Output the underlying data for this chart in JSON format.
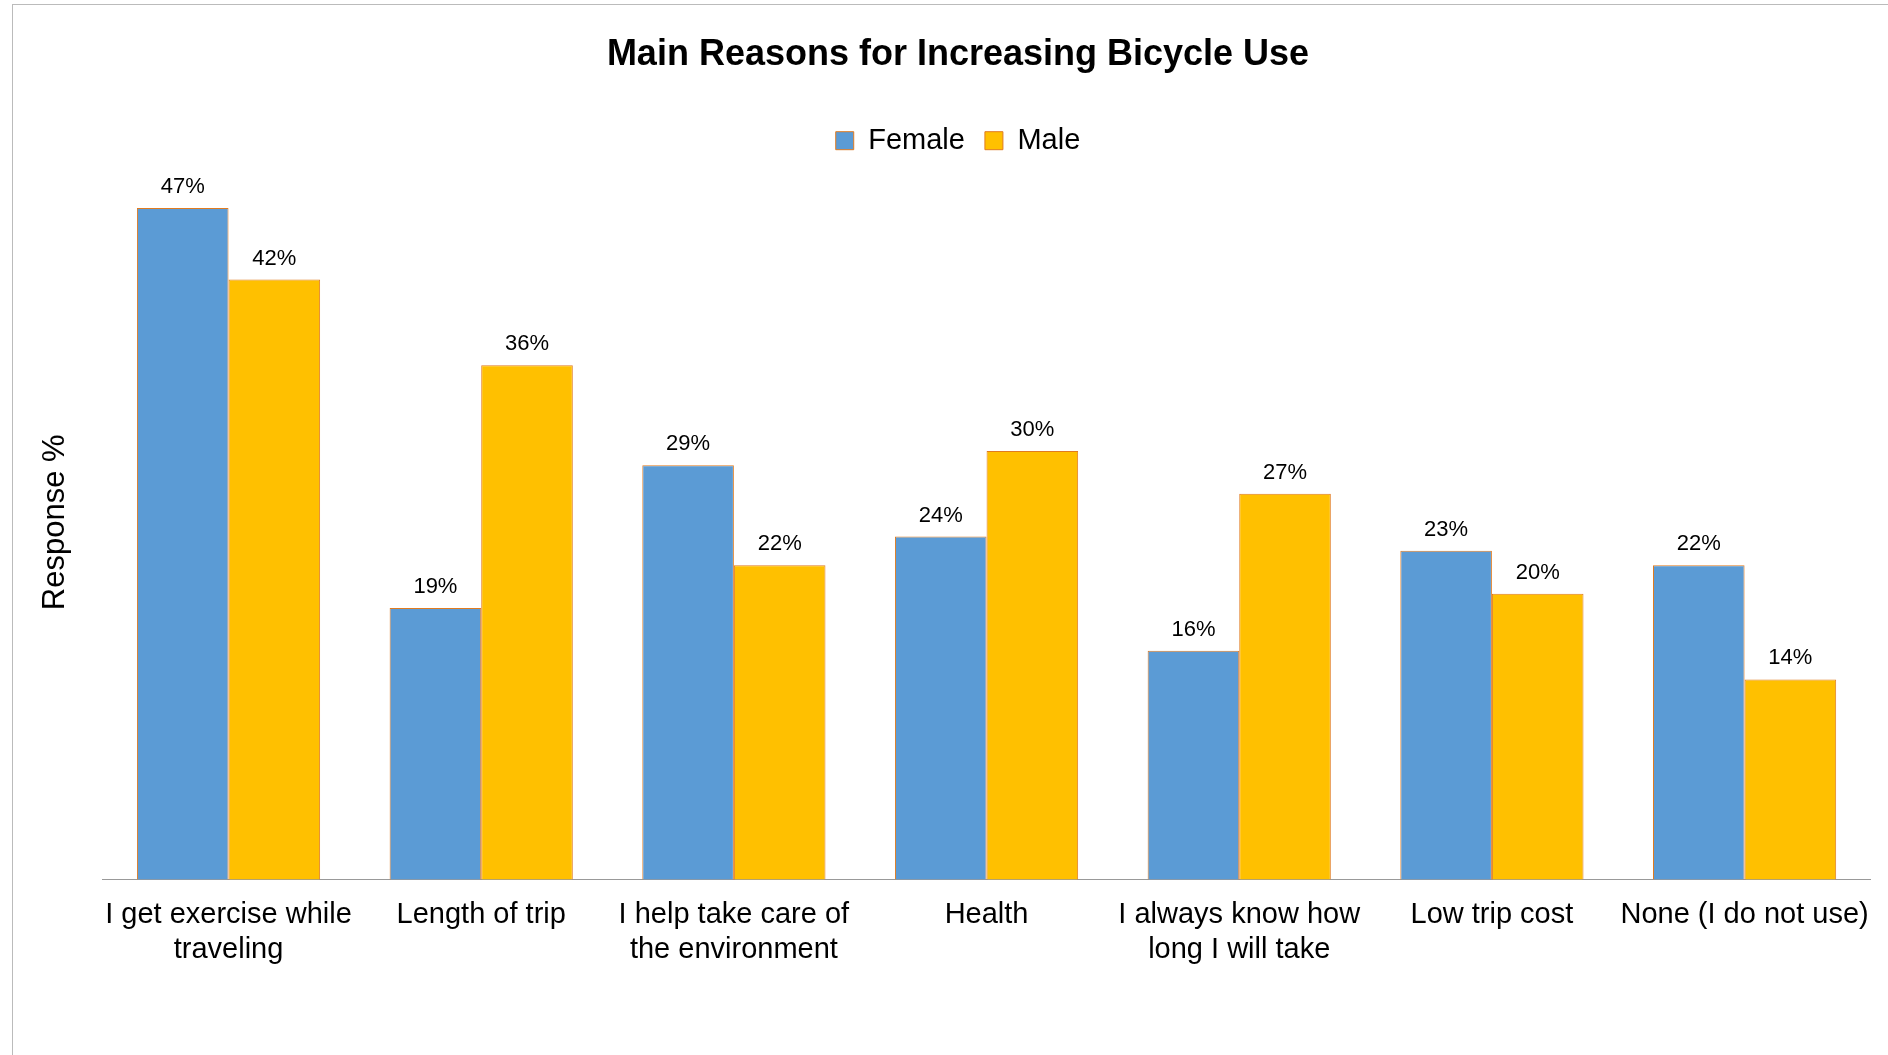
{
  "chart_data": {
    "type": "bar",
    "title": "Main Reasons for Increasing Bicycle Use",
    "ylabel": "Response %",
    "categories": [
      "I get exercise while traveling",
      "Length of trip",
      "I help take care of the environment",
      "Health",
      "I always know how long I will take",
      "Low trip cost",
      "None (I do not use)"
    ],
    "series": [
      {
        "name": "Female",
        "color": "#5b9bd5",
        "values": [
          47,
          19,
          29,
          24,
          16,
          23,
          22
        ],
        "value_labels": [
          "47%",
          "19%",
          "29%",
          "24%",
          "16%",
          "23%",
          "22%"
        ]
      },
      {
        "name": "Male",
        "color": "#ffc000",
        "values": [
          42,
          36,
          22,
          30,
          27,
          20,
          14
        ],
        "value_labels": [
          "42%",
          "36%",
          "22%",
          "30%",
          "27%",
          "20%",
          "14%"
        ]
      }
    ],
    "tick_labels": "x",
    "grid": false,
    "legend": "top"
  }
}
